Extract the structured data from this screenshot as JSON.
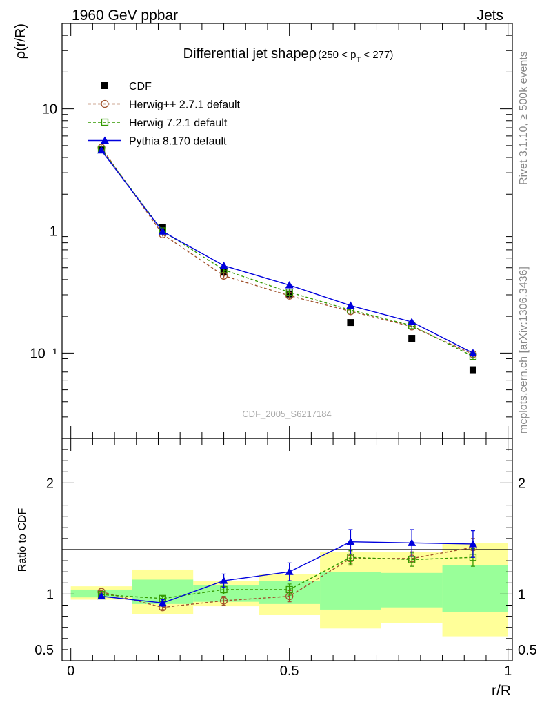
{
  "header": {
    "left": "1960 GeV ppbar",
    "right": "Jets"
  },
  "side": {
    "rivet": "Rivet 3.1.10, ≥ 500k events",
    "mcplots": "mcplots.cern.ch [arXiv:1306.3436]"
  },
  "chart_data": [
    {
      "type": "line",
      "title": "Differential jet shapeρ",
      "title_suffix": "(250 < p",
      "title_sub": "T",
      "title_end": " < 277)",
      "ylabel": "ρ(r/R)",
      "xlabel": "",
      "yscale": "log",
      "xlim": [
        -0.02,
        1.01
      ],
      "ylim": [
        0.02,
        50
      ],
      "yticks": [
        {
          "value": 10,
          "label": "10"
        },
        {
          "value": 1,
          "label": "1"
        },
        {
          "value": 0.1,
          "label": "10⁻¹"
        }
      ],
      "watermark": "CDF_2005_S6217184",
      "legend_position": "top-left",
      "x": [
        0.07,
        0.21,
        0.35,
        0.5,
        0.64,
        0.78,
        0.92
      ],
      "series": [
        {
          "name": "CDF",
          "color": "#000000",
          "marker": "square-filled",
          "line": "none",
          "values": [
            4.68,
            1.07,
            0.46,
            0.305,
            0.178,
            0.132,
            0.073
          ]
        },
        {
          "name": "Herwig++ 2.7.1 default",
          "color": "#a0522d",
          "marker": "circle-open",
          "line": "dashed",
          "values": [
            4.8,
            0.94,
            0.43,
            0.295,
            0.22,
            0.165,
            0.098
          ]
        },
        {
          "name": "Herwig 7.2.1 default",
          "color": "#339900",
          "marker": "square-open",
          "line": "dashed",
          "values": [
            4.65,
            1.0,
            0.48,
            0.315,
            0.225,
            0.168,
            0.094
          ]
        },
        {
          "name": "Pythia 8.170 default",
          "color": "#0000dd",
          "marker": "triangle-filled",
          "line": "solid",
          "values": [
            4.57,
            0.99,
            0.52,
            0.36,
            0.245,
            0.18,
            0.1
          ]
        }
      ]
    },
    {
      "type": "line",
      "ylabel": "Ratio to CDF",
      "xlabel": "r/R",
      "ylim": [
        0.4,
        2.4
      ],
      "xlim": [
        -0.02,
        1.01
      ],
      "xticks": [
        {
          "value": 0,
          "label": "0"
        },
        {
          "value": 0.5,
          "label": "0.5"
        },
        {
          "value": 1,
          "label": "1"
        }
      ],
      "yticks": [
        {
          "value": 2,
          "label": "2"
        },
        {
          "value": 1,
          "label": "1"
        },
        {
          "value": 0.5,
          "label": "0.5"
        }
      ],
      "bands": {
        "bin_edges": [
          0,
          0.14,
          0.28,
          0.43,
          0.57,
          0.71,
          0.85,
          1.0
        ],
        "yellow": [
          [
            0.95,
            1.07
          ],
          [
            0.82,
            1.22
          ],
          [
            0.89,
            1.12
          ],
          [
            0.81,
            1.18
          ],
          [
            0.69,
            1.38
          ],
          [
            0.74,
            1.38
          ],
          [
            0.62,
            1.46
          ]
        ],
        "green": [
          [
            0.97,
            1.04
          ],
          [
            0.91,
            1.13
          ],
          [
            0.93,
            1.08
          ],
          [
            0.91,
            1.12
          ],
          [
            0.86,
            1.2
          ],
          [
            0.88,
            1.19
          ],
          [
            0.84,
            1.26
          ]
        ]
      },
      "x": [
        0.07,
        0.21,
        0.35,
        0.5,
        0.64,
        0.78,
        0.92
      ],
      "series": [
        {
          "name": "Herwig++ 2.7.1 default",
          "color": "#a0522d",
          "marker": "circle-open",
          "line": "dashed",
          "values": [
            1.02,
            0.88,
            0.94,
            0.98,
            1.32,
            1.32,
            1.42
          ],
          "err": [
            0.01,
            0.02,
            0.04,
            0.05,
            0.06,
            0.06,
            0.08
          ]
        },
        {
          "name": "Herwig 7.2.1 default",
          "color": "#339900",
          "marker": "square-open",
          "line": "dashed",
          "values": [
            0.995,
            0.96,
            1.04,
            1.04,
            1.33,
            1.31,
            1.33
          ],
          "err": [
            0.01,
            0.02,
            0.04,
            0.05,
            0.06,
            0.06,
            0.08
          ]
        },
        {
          "name": "Pythia 8.170 default",
          "color": "#0000dd",
          "marker": "triangle-filled",
          "line": "solid",
          "values": [
            0.98,
            0.92,
            1.12,
            1.2,
            1.47,
            1.46,
            1.45
          ],
          "err": [
            0.01,
            0.03,
            0.06,
            0.08,
            0.11,
            0.12,
            0.12
          ]
        }
      ]
    }
  ]
}
